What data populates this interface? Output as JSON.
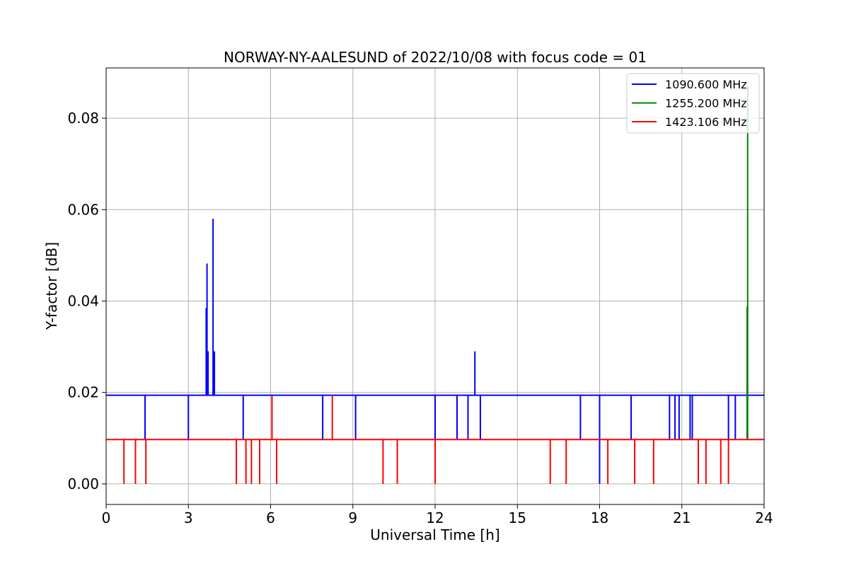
{
  "chart_data": {
    "type": "line",
    "title": "NORWAY-NY-AALESUND of 2022/10/08 with focus code = 01",
    "xlabel": "Universal Time [h]",
    "ylabel": "Y-factor [dB]",
    "xlim": [
      0,
      24
    ],
    "ylim": [
      -0.0045,
      0.091
    ],
    "xticks": [
      0,
      3,
      6,
      9,
      12,
      15,
      18,
      21,
      24
    ],
    "xtick_labels": [
      "0",
      "3",
      "6",
      "9",
      "12",
      "15",
      "18",
      "21",
      "24"
    ],
    "yticks": [
      0.0,
      0.02,
      0.04,
      0.06,
      0.08
    ],
    "ytick_labels": [
      "0.00",
      "0.02",
      "0.04",
      "0.06",
      "0.08"
    ],
    "grid": true,
    "legend_position": "top-right",
    "series": [
      {
        "name": "1090.600 MHz",
        "color": "#0000ff",
        "baseline": 0.0194,
        "spikes": [
          {
            "x": 1.42,
            "y": 0.0097
          },
          {
            "x": 3.0,
            "y": 0.0097
          },
          {
            "x": 3.65,
            "y": 0.0385
          },
          {
            "x": 3.68,
            "y": 0.0482
          },
          {
            "x": 3.72,
            "y": 0.029
          },
          {
            "x": 3.9,
            "y": 0.058
          },
          {
            "x": 3.95,
            "y": 0.029
          },
          {
            "x": 5.0,
            "y": 0.0097
          },
          {
            "x": 7.9,
            "y": 0.0097
          },
          {
            "x": 9.1,
            "y": 0.0097
          },
          {
            "x": 12.0,
            "y": 0.0097
          },
          {
            "x": 12.8,
            "y": 0.0097
          },
          {
            "x": 13.2,
            "y": 0.0097
          },
          {
            "x": 13.45,
            "y": 0.029
          },
          {
            "x": 13.65,
            "y": 0.0097
          },
          {
            "x": 17.3,
            "y": 0.0097
          },
          {
            "x": 18.0,
            "y": 0.0
          },
          {
            "x": 19.15,
            "y": 0.0097
          },
          {
            "x": 20.55,
            "y": 0.0097
          },
          {
            "x": 20.75,
            "y": 0.0097
          },
          {
            "x": 20.9,
            "y": 0.0097
          },
          {
            "x": 21.3,
            "y": 0.0097
          },
          {
            "x": 21.38,
            "y": 0.0097
          },
          {
            "x": 22.7,
            "y": 0.0097
          },
          {
            "x": 22.95,
            "y": 0.0097
          }
        ]
      },
      {
        "name": "1255.200 MHz",
        "color": "#008000",
        "baseline": null,
        "spikes": [
          {
            "x": 23.38,
            "y0": 0.0097,
            "y": 0.0387
          },
          {
            "x": 23.4,
            "y0": 0.0097,
            "y": 0.087
          }
        ]
      },
      {
        "name": "1423.106 MHz",
        "color": "#ff0000",
        "baseline": 0.0097,
        "spikes": [
          {
            "x": 0.65,
            "y": 0.0
          },
          {
            "x": 1.07,
            "y": 0.0
          },
          {
            "x": 1.45,
            "y": 0.0
          },
          {
            "x": 4.75,
            "y": 0.0
          },
          {
            "x": 5.1,
            "y": 0.0
          },
          {
            "x": 5.3,
            "y": 0.0
          },
          {
            "x": 5.6,
            "y": 0.0
          },
          {
            "x": 6.05,
            "y": 0.0194
          },
          {
            "x": 6.22,
            "y": 0.0
          },
          {
            "x": 8.25,
            "y": 0.0194
          },
          {
            "x": 10.1,
            "y": 0.0
          },
          {
            "x": 10.62,
            "y": 0.0
          },
          {
            "x": 12.0,
            "y": 0.0
          },
          {
            "x": 16.2,
            "y": 0.0
          },
          {
            "x": 16.78,
            "y": 0.0
          },
          {
            "x": 18.3,
            "y": 0.0
          },
          {
            "x": 19.28,
            "y": 0.0
          },
          {
            "x": 19.97,
            "y": 0.0
          },
          {
            "x": 21.6,
            "y": 0.0
          },
          {
            "x": 21.88,
            "y": 0.0
          },
          {
            "x": 22.42,
            "y": 0.0
          },
          {
            "x": 22.7,
            "y": 0.0
          }
        ]
      }
    ]
  }
}
